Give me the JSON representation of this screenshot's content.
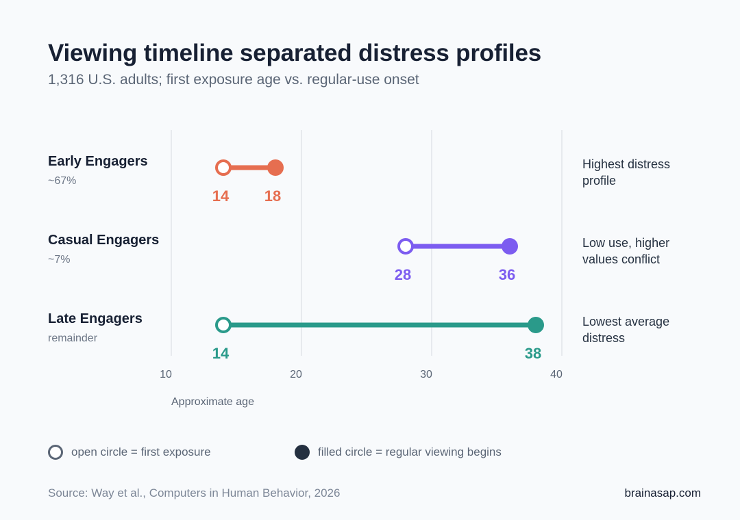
{
  "title": "Viewing timeline separated distress profiles",
  "subtitle": "1,316 U.S. adults; first exposure age vs. regular-use onset",
  "chart_data": {
    "type": "dumbbell",
    "xlabel": "Approximate age",
    "xlim": [
      10,
      40
    ],
    "xticks": [
      "10",
      "20",
      "30",
      "40"
    ],
    "grid": true,
    "rows": [
      {
        "name": "Early Engagers",
        "share": "~67%",
        "start": 14,
        "end": 18,
        "start_label": "14",
        "end_label": "18",
        "color": "#e66e50",
        "note": [
          "Highest distress",
          "profile"
        ]
      },
      {
        "name": "Casual Engagers",
        "share": "~7%",
        "start": 28,
        "end": 36,
        "start_label": "28",
        "end_label": "36",
        "color": "#7c5cf0",
        "note": [
          "Low use, higher",
          "values conflict"
        ]
      },
      {
        "name": "Late Engagers",
        "share": "remainder",
        "start": 14,
        "end": 38,
        "start_label": "14",
        "end_label": "38",
        "color": "#2a9a8a",
        "note": [
          "Lowest average",
          "distress"
        ]
      }
    ]
  },
  "legend": {
    "open": "open circle = first exposure",
    "filled": "filled circle = regular viewing begins"
  },
  "source": "Source: Way et al., Computers in Human Behavior, 2026",
  "brand": "brainasap.com",
  "colors": {
    "text_dark": "#172033",
    "text_muted": "#5b6676",
    "grid": "#e1e5ea"
  }
}
